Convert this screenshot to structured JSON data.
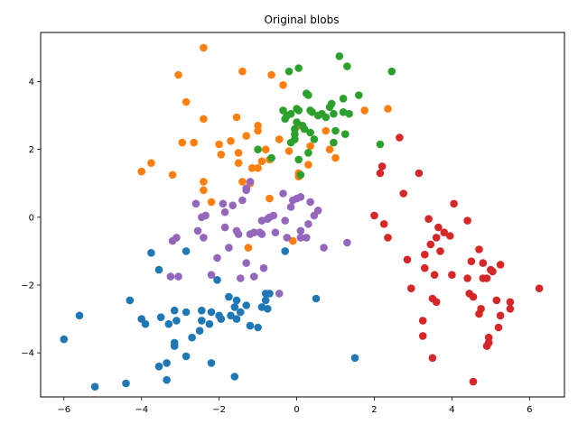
{
  "chart_data": {
    "type": "scatter",
    "title": "Original blobs",
    "xlabel": "",
    "ylabel": "",
    "xlim": [
      -6.6,
      6.9
    ],
    "ylim": [
      -5.3,
      5.45
    ],
    "xticks": [
      -6,
      -4,
      -2,
      0,
      2,
      4,
      6
    ],
    "yticks": [
      -4,
      -2,
      0,
      2,
      4
    ],
    "grid": false,
    "series": [
      {
        "color": "#1f77b4",
        "points": [
          [
            -6.0,
            -3.6
          ],
          [
            -5.6,
            -2.9
          ],
          [
            -5.2,
            -5.0
          ],
          [
            -4.4,
            -4.9
          ],
          [
            -4.3,
            -2.45
          ],
          [
            -4.0,
            -3.0
          ],
          [
            -3.9,
            -3.15
          ],
          [
            -3.75,
            -1.05
          ],
          [
            -3.55,
            -4.4
          ],
          [
            -3.55,
            -1.55
          ],
          [
            -3.5,
            -2.95
          ],
          [
            -3.35,
            -4.8
          ],
          [
            -3.35,
            -4.3
          ],
          [
            -3.3,
            -3.15
          ],
          [
            -3.15,
            -3.8
          ],
          [
            -3.15,
            -3.7
          ],
          [
            -3.15,
            -2.75
          ],
          [
            -3.1,
            -3.05
          ],
          [
            -2.85,
            -4.1
          ],
          [
            -2.85,
            -2.8
          ],
          [
            -2.85,
            -1.0
          ],
          [
            -2.7,
            -3.55
          ],
          [
            -2.5,
            -3.35
          ],
          [
            -2.45,
            -3.05
          ],
          [
            -2.45,
            -2.75
          ],
          [
            -2.25,
            -3.15
          ],
          [
            -2.2,
            -4.3
          ],
          [
            -2.2,
            -2.8
          ],
          [
            -2.0,
            -2.9
          ],
          [
            -1.95,
            -3.0
          ],
          [
            -2.05,
            -1.85
          ],
          [
            -1.75,
            -2.35
          ],
          [
            -1.7,
            -2.9
          ],
          [
            -1.6,
            -4.7
          ],
          [
            -1.6,
            -2.65
          ],
          [
            -1.55,
            -2.45
          ],
          [
            -1.55,
            -3.0
          ],
          [
            -1.45,
            -2.8
          ],
          [
            -1.3,
            -2.6
          ],
          [
            -1.2,
            -3.2
          ],
          [
            -1.0,
            -3.25
          ],
          [
            -0.9,
            -2.65
          ],
          [
            -0.8,
            -2.45
          ],
          [
            -0.8,
            -2.25
          ],
          [
            -0.7,
            -2.25
          ],
          [
            -0.75,
            -2.7
          ],
          [
            -0.3,
            -1.0
          ],
          [
            0.5,
            -2.4
          ],
          [
            1.5,
            -4.15
          ]
        ]
      },
      {
        "color": "#ff7f0e",
        "points": [
          [
            -4.0,
            1.35
          ],
          [
            -3.75,
            1.6
          ],
          [
            -3.2,
            1.25
          ],
          [
            -3.05,
            4.2
          ],
          [
            -2.95,
            2.2
          ],
          [
            -2.85,
            3.4
          ],
          [
            -2.65,
            2.2
          ],
          [
            -2.4,
            5.0
          ],
          [
            -2.4,
            2.9
          ],
          [
            -2.4,
            1.05
          ],
          [
            -2.4,
            0.8
          ],
          [
            -2.2,
            0.45
          ],
          [
            -2.0,
            2.15
          ],
          [
            -1.95,
            1.85
          ],
          [
            -1.7,
            2.25
          ],
          [
            -1.55,
            2.95
          ],
          [
            -1.5,
            1.9
          ],
          [
            -1.5,
            1.6
          ],
          [
            -1.4,
            4.3
          ],
          [
            -1.4,
            1.05
          ],
          [
            -1.3,
            2.4
          ],
          [
            -1.25,
            -0.9
          ],
          [
            -1.2,
            1.0
          ],
          [
            -1.15,
            1.45
          ],
          [
            -1.0,
            2.7
          ],
          [
            -1.0,
            2.55
          ],
          [
            -1.0,
            1.45
          ],
          [
            -0.9,
            1.65
          ],
          [
            -0.8,
            2.0
          ],
          [
            -0.7,
            1.7
          ],
          [
            -0.7,
            0.55
          ],
          [
            -0.65,
            4.2
          ],
          [
            -0.45,
            2.3
          ],
          [
            -0.35,
            3.9
          ],
          [
            -0.2,
            1.95
          ],
          [
            -0.1,
            -0.7
          ],
          [
            0.05,
            1.2
          ],
          [
            0.05,
            1.3
          ],
          [
            0.1,
            2.7
          ],
          [
            0.3,
            1.55
          ],
          [
            0.35,
            2.1
          ],
          [
            0.75,
            2.55
          ],
          [
            0.85,
            2.0
          ],
          [
            1.0,
            1.75
          ],
          [
            1.75,
            3.15
          ],
          [
            2.35,
            3.2
          ]
        ]
      },
      {
        "color": "#2ca02c",
        "points": [
          [
            -1.0,
            2.0
          ],
          [
            -0.65,
            1.75
          ],
          [
            -0.35,
            3.15
          ],
          [
            -0.3,
            2.9
          ],
          [
            -0.25,
            3.0
          ],
          [
            -0.2,
            4.3
          ],
          [
            -0.15,
            3.05
          ],
          [
            -0.15,
            2.2
          ],
          [
            -0.05,
            2.3
          ],
          [
            -0.05,
            2.45
          ],
          [
            -0.05,
            2.6
          ],
          [
            0.0,
            3.2
          ],
          [
            0.0,
            2.8
          ],
          [
            0.05,
            4.4
          ],
          [
            0.05,
            3.15
          ],
          [
            0.05,
            1.7
          ],
          [
            0.1,
            1.25
          ],
          [
            0.15,
            2.7
          ],
          [
            0.2,
            2.6
          ],
          [
            0.25,
            3.65
          ],
          [
            0.3,
            3.6
          ],
          [
            0.3,
            1.9
          ],
          [
            0.35,
            2.5
          ],
          [
            0.35,
            3.15
          ],
          [
            0.4,
            3.1
          ],
          [
            0.45,
            2.3
          ],
          [
            0.55,
            3.0
          ],
          [
            0.65,
            3.05
          ],
          [
            0.75,
            2.95
          ],
          [
            0.85,
            3.25
          ],
          [
            0.9,
            3.35
          ],
          [
            0.95,
            3.05
          ],
          [
            1.0,
            2.55
          ],
          [
            1.1,
            4.75
          ],
          [
            1.2,
            3.5
          ],
          [
            1.2,
            3.1
          ],
          [
            1.25,
            2.45
          ],
          [
            1.3,
            4.45
          ],
          [
            1.35,
            3.05
          ],
          [
            1.6,
            3.6
          ],
          [
            2.15,
            2.15
          ],
          [
            2.45,
            4.3
          ],
          [
            0.95,
            2.2
          ]
        ]
      },
      {
        "color": "#d62728",
        "points": [
          [
            2.0,
            0.05
          ],
          [
            2.15,
            1.3
          ],
          [
            2.2,
            1.5
          ],
          [
            2.25,
            -0.2
          ],
          [
            2.35,
            -0.6
          ],
          [
            2.65,
            2.35
          ],
          [
            2.75,
            0.7
          ],
          [
            2.85,
            -1.25
          ],
          [
            2.95,
            -2.1
          ],
          [
            3.15,
            1.3
          ],
          [
            3.25,
            -3.05
          ],
          [
            3.25,
            -3.5
          ],
          [
            3.3,
            -1.1
          ],
          [
            3.3,
            -1.5
          ],
          [
            3.4,
            -0.05
          ],
          [
            3.45,
            -0.8
          ],
          [
            3.5,
            -2.4
          ],
          [
            3.5,
            -4.15
          ],
          [
            3.55,
            -1.7
          ],
          [
            3.6,
            -2.5
          ],
          [
            3.6,
            -0.6
          ],
          [
            3.65,
            -0.3
          ],
          [
            3.7,
            -1.0
          ],
          [
            3.8,
            -0.45
          ],
          [
            3.95,
            -0.55
          ],
          [
            4.0,
            -1.7
          ],
          [
            4.05,
            0.4
          ],
          [
            4.4,
            -1.8
          ],
          [
            4.4,
            -0.1
          ],
          [
            4.45,
            -2.25
          ],
          [
            4.5,
            -1.3
          ],
          [
            4.55,
            -2.35
          ],
          [
            4.55,
            -4.85
          ],
          [
            4.7,
            -0.95
          ],
          [
            4.7,
            -2.85
          ],
          [
            4.75,
            -2.7
          ],
          [
            4.8,
            -1.35
          ],
          [
            4.8,
            -1.8
          ],
          [
            4.9,
            -1.8
          ],
          [
            4.9,
            -3.8
          ],
          [
            4.95,
            -3.55
          ],
          [
            4.95,
            -3.7
          ],
          [
            5.0,
            -1.55
          ],
          [
            5.05,
            -1.6
          ],
          [
            5.15,
            -2.45
          ],
          [
            5.2,
            -3.25
          ],
          [
            5.25,
            -1.4
          ],
          [
            5.25,
            -2.9
          ],
          [
            5.5,
            -2.5
          ],
          [
            5.5,
            -2.7
          ],
          [
            6.25,
            -2.1
          ]
        ]
      },
      {
        "color": "#9467bd",
        "points": [
          [
            -3.25,
            -1.75
          ],
          [
            -3.2,
            -0.7
          ],
          [
            -3.1,
            -0.6
          ],
          [
            -3.05,
            -1.75
          ],
          [
            -2.6,
            0.4
          ],
          [
            -2.55,
            -0.4
          ],
          [
            -2.45,
            0.0
          ],
          [
            -2.4,
            -0.6
          ],
          [
            -2.35,
            0.05
          ],
          [
            -2.2,
            -1.7
          ],
          [
            -2.05,
            -1.2
          ],
          [
            -1.9,
            0.4
          ],
          [
            -1.85,
            -0.3
          ],
          [
            -1.85,
            0.15
          ],
          [
            -1.75,
            -0.9
          ],
          [
            -1.65,
            0.35
          ],
          [
            -1.55,
            -0.4
          ],
          [
            -1.5,
            -0.5
          ],
          [
            -1.45,
            -1.8
          ],
          [
            -1.4,
            0.5
          ],
          [
            -1.3,
            0.85
          ],
          [
            -1.3,
            0.8
          ],
          [
            -1.3,
            -1.35
          ],
          [
            -1.2,
            -0.5
          ],
          [
            -1.2,
            1.05
          ],
          [
            -1.1,
            -0.45
          ],
          [
            -1.1,
            -1.75
          ],
          [
            -0.95,
            -0.45
          ],
          [
            -0.9,
            -0.5
          ],
          [
            -0.9,
            -0.1
          ],
          [
            -0.85,
            -1.5
          ],
          [
            -0.75,
            -0.05
          ],
          [
            -0.7,
            0.0
          ],
          [
            -0.6,
            0.05
          ],
          [
            -0.55,
            -0.45
          ],
          [
            -0.45,
            -2.25
          ],
          [
            -0.35,
            0.7
          ],
          [
            -0.3,
            -0.1
          ],
          [
            -0.25,
            -0.6
          ],
          [
            -0.15,
            0.3
          ],
          [
            -0.1,
            0.5
          ],
          [
            0.0,
            0.55
          ],
          [
            0.1,
            0.6
          ],
          [
            0.1,
            -0.4
          ],
          [
            0.25,
            -0.6
          ],
          [
            0.3,
            -0.2
          ],
          [
            0.35,
            0.45
          ],
          [
            0.45,
            0.05
          ],
          [
            0.55,
            0.2
          ],
          [
            0.7,
            -0.9
          ],
          [
            1.3,
            -0.75
          ],
          [
            0.1,
            -0.6
          ]
        ]
      }
    ]
  }
}
